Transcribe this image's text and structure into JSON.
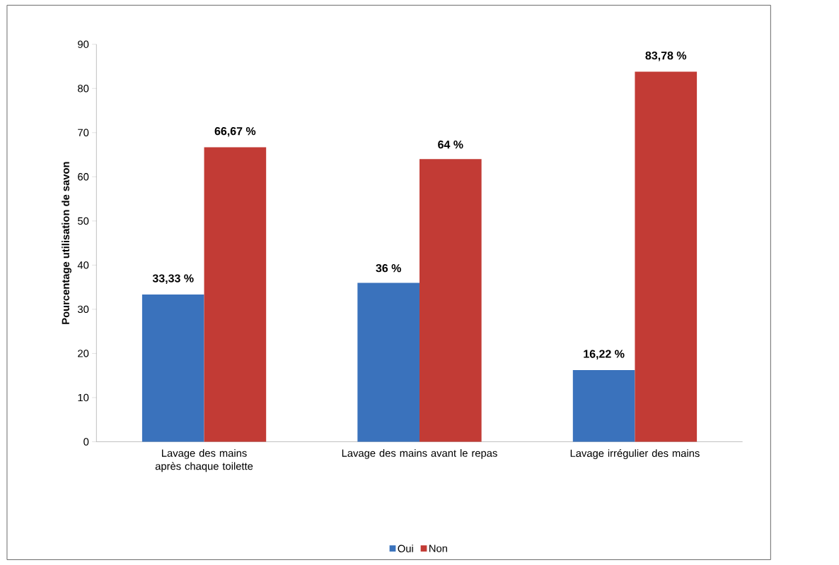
{
  "chart_data": {
    "type": "bar",
    "ylabel": "Pourcentage utilisation de savon",
    "categories": [
      "Lavage des mains après chaque toilette",
      "Lavage des mains avant le repas",
      "Lavage irrégulier des mains"
    ],
    "series": [
      {
        "name": "Oui",
        "color": "#3a72bc",
        "values": [
          33.33,
          36,
          16.22
        ],
        "value_labels": [
          "33,33 %",
          "36 %",
          "16,22 %"
        ]
      },
      {
        "name": "Non",
        "color": "#c23b35",
        "values": [
          66.67,
          64,
          83.78
        ],
        "value_labels": [
          "66,67 %",
          "64 %",
          "83,78 %"
        ]
      }
    ],
    "ylim": [
      0,
      90
    ],
    "yticks": [
      0,
      10,
      20,
      30,
      40,
      50,
      60,
      70,
      80,
      90
    ],
    "legend": "bottom"
  }
}
